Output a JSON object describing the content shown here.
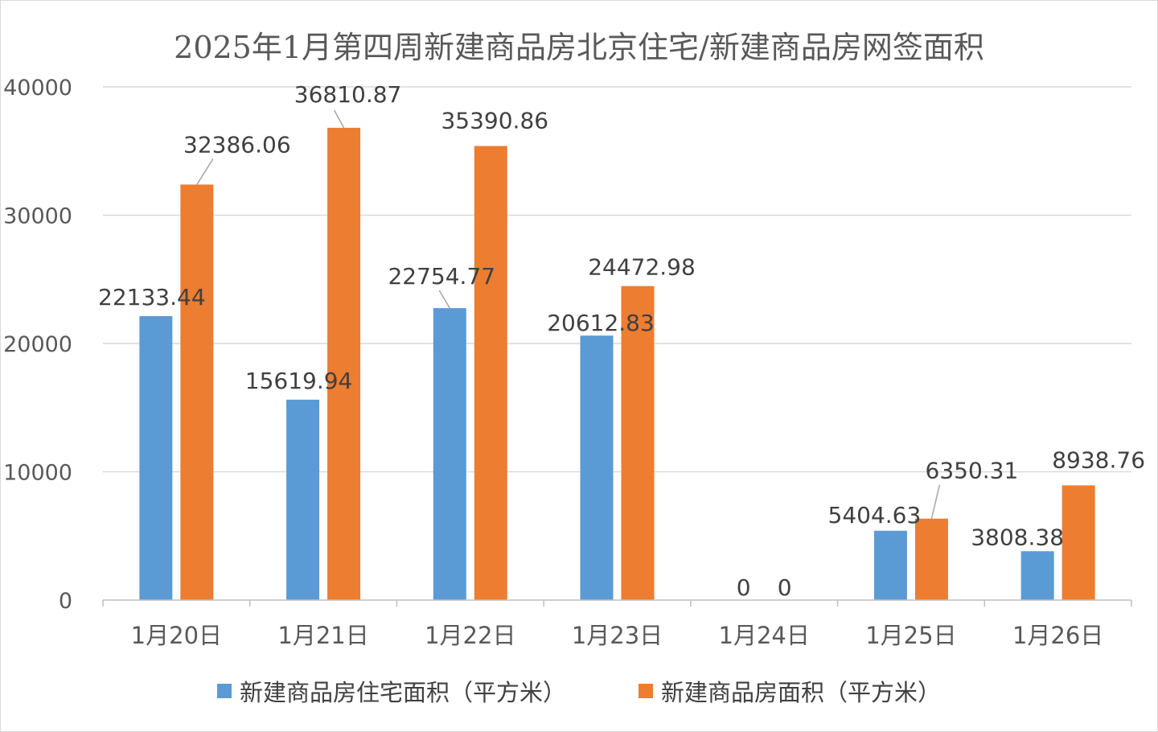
{
  "chart_data": {
    "type": "bar",
    "title": "2025年1月第四周新建商品房北京住宅/新建商品房网签面积",
    "categories": [
      "1月20日",
      "1月21日",
      "1月22日",
      "1月23日",
      "1月24日",
      "1月25日",
      "1月26日"
    ],
    "series": [
      {
        "name": "新建商品房住宅面积（平方米）",
        "color": "#5B9BD5",
        "values": [
          22133.44,
          15619.94,
          22754.77,
          20612.83,
          0,
          5404.63,
          3808.38
        ],
        "labels": [
          "22133.44",
          "15619.94",
          "22754.77",
          "20612.83",
          "0",
          "5404.63",
          "3808.38"
        ]
      },
      {
        "name": "新建商品房面积（平方米）",
        "color": "#ED7D31",
        "values": [
          32386.06,
          36810.87,
          35390.86,
          24472.98,
          0,
          6350.31,
          8938.76
        ],
        "labels": [
          "32386.06",
          "36810.87",
          "35390.86",
          "24472.98",
          "0",
          "6350.31",
          "8938.76"
        ]
      }
    ],
    "ylim": [
      0,
      40000
    ],
    "yticks": [
      0,
      10000,
      20000,
      30000,
      40000
    ],
    "grid": true,
    "legend_position": "bottom"
  }
}
